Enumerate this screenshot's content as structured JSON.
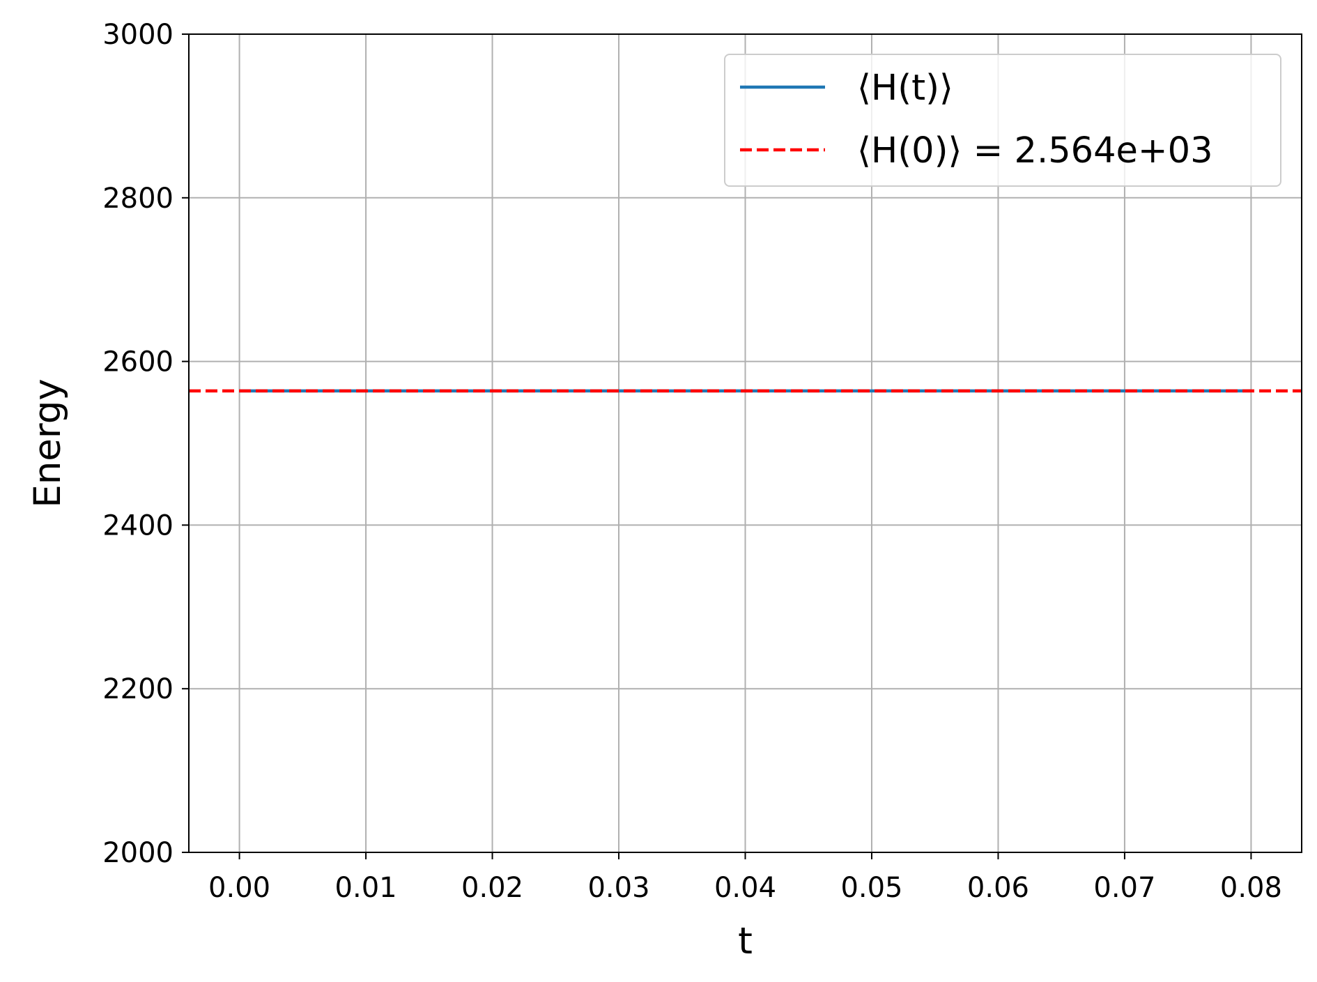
{
  "chart_data": {
    "type": "line",
    "xlabel": "t",
    "ylabel": "Energy",
    "xlim": [
      -0.004,
      0.084
    ],
    "ylim": [
      2000,
      3000
    ],
    "xticks": [
      "0.00",
      "0.01",
      "0.02",
      "0.03",
      "0.04",
      "0.05",
      "0.06",
      "0.07",
      "0.08"
    ],
    "yticks": [
      "2000",
      "2200",
      "2400",
      "2600",
      "2800",
      "3000"
    ],
    "grid": true,
    "legend_position": "top-right",
    "series": [
      {
        "name": "⟨H(t)⟩",
        "style": "solid",
        "color": "#1f77b4",
        "x": [
          0.0,
          0.01,
          0.02,
          0.03,
          0.04,
          0.05,
          0.06,
          0.07,
          0.08
        ],
        "values": [
          2564,
          2564,
          2564,
          2564,
          2564,
          2564,
          2564,
          2564,
          2564
        ]
      },
      {
        "name": "⟨H(0)⟩ = 2.564e+03",
        "style": "dashed",
        "color": "#ff0000",
        "value": 2564
      }
    ]
  }
}
